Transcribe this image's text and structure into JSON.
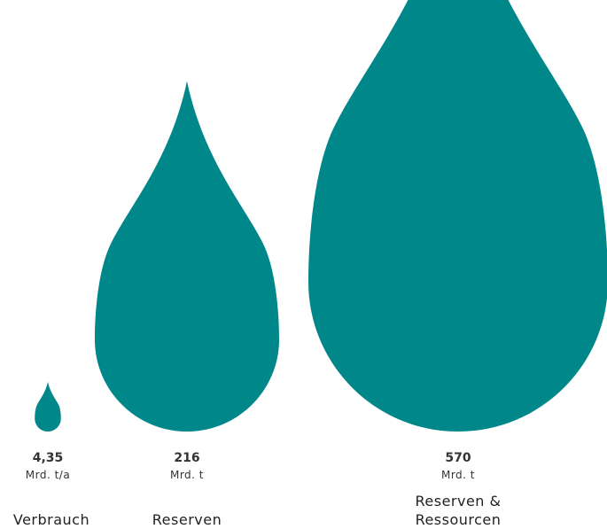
{
  "chart_data": {
    "type": "proportional-drops",
    "series_color": "#00878a",
    "items": [
      {
        "value_label": "4,35",
        "unit": "Mrd. t/a",
        "value": 4.35,
        "category": [
          "Verbrauch"
        ]
      },
      {
        "value_label": "216",
        "unit": "Mrd. t",
        "value": 216,
        "category": [
          "Reserven"
        ]
      },
      {
        "value_label": "570",
        "unit": "Mrd. t",
        "value": 570,
        "category": [
          "Reserven &",
          "Ressourcen"
        ]
      }
    ]
  }
}
